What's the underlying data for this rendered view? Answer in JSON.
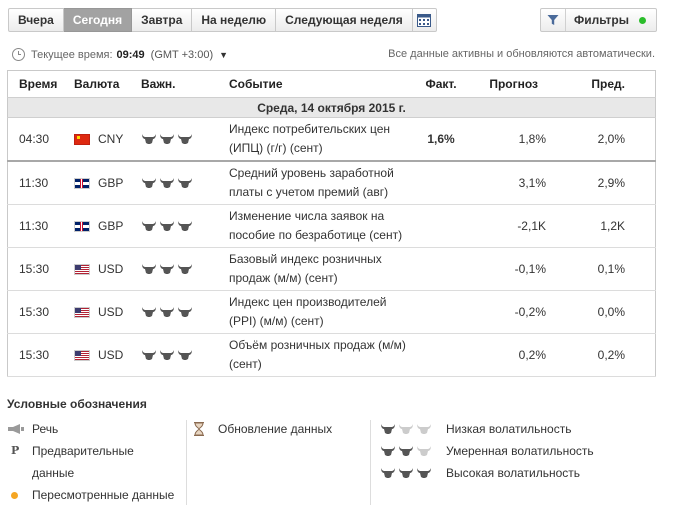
{
  "tabs": [
    {
      "label": "Вчера",
      "active": false
    },
    {
      "label": "Сегодня",
      "active": true
    },
    {
      "label": "Завтра",
      "active": false
    },
    {
      "label": "На неделю",
      "active": false
    },
    {
      "label": "Следующая неделя",
      "active": false
    }
  ],
  "icons": {
    "calendar": "calendar-icon",
    "filter": "filter-icon",
    "clock": "clock-icon",
    "bull": "bull-icon",
    "speech": "speech-icon",
    "hourglass": "hourglass-icon"
  },
  "filters": {
    "label": "Фильтры",
    "status_color": "#2bbd2b"
  },
  "time": {
    "label": "Текущее время:",
    "value": "09:49",
    "gmt": "(GMT +3:00)",
    "auto_note": "Все данные активны и обновляются автоматически."
  },
  "table": {
    "headers": {
      "time": "Время",
      "currency": "Валюта",
      "importance": "Важн.",
      "event": "Событие",
      "actual": "Факт.",
      "forecast": "Прогноз",
      "previous": "Пред."
    },
    "date_row": "Среда, 14 октября 2015 г.",
    "rows": [
      {
        "time": "04:30",
        "flag": "cn",
        "currency": "CNY",
        "importance": 3,
        "event": "Индекс потребительских цен (ИПЦ) (г/г) (сент)",
        "actual": "1,6%",
        "forecast": "1,8%",
        "previous": "2,0%"
      },
      {
        "time": "11:30",
        "flag": "gb",
        "currency": "GBP",
        "importance": 3,
        "event": "Средний уровень заработной платы с учетом премий (авг)",
        "actual": "",
        "forecast": "3,1%",
        "previous": "2,9%"
      },
      {
        "time": "11:30",
        "flag": "gb",
        "currency": "GBP",
        "importance": 3,
        "event": "Изменение числа заявок на пособие по безработице (сент)",
        "actual": "",
        "forecast": "-2,1K",
        "previous": "1,2K"
      },
      {
        "time": "15:30",
        "flag": "us",
        "currency": "USD",
        "importance": 3,
        "event": "Базовый индекс розничных продаж (м/м) (сент)",
        "actual": "",
        "forecast": "-0,1%",
        "previous": "0,1%"
      },
      {
        "time": "15:30",
        "flag": "us",
        "currency": "USD",
        "importance": 3,
        "event": "Индекс цен производителей (PPI) (м/м) (сент)",
        "actual": "",
        "forecast": "-0,2%",
        "previous": "0,0%"
      },
      {
        "time": "15:30",
        "flag": "us",
        "currency": "USD",
        "importance": 3,
        "event": "Объём розничных продаж (м/м) (сент)",
        "actual": "",
        "forecast": "0,2%",
        "previous": "0,2%"
      }
    ]
  },
  "colors": {
    "actual_highlight": "#d21a1a",
    "bull_active": "#555555",
    "bull_inactive": "#cccccc",
    "revised_dot": "#f5a623"
  },
  "legend": {
    "title": "Условные обозначения",
    "speech": "Речь",
    "preliminary_line1": "Предварительные",
    "preliminary_line2": "данные",
    "preliminary_icon_text": "P",
    "revised": "Пересмотренные данные",
    "update": "Обновление данных",
    "low_volatility": "Низкая волатильность",
    "moderate_volatility": "Умеренная волатильность",
    "high_volatility": "Высокая волатильность"
  }
}
